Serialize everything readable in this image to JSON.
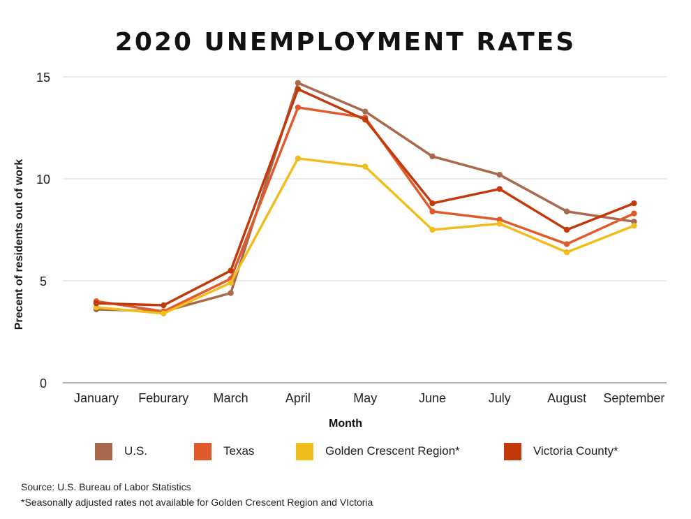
{
  "title": "2020 UNEMPLOYMENT RATES",
  "footer": {
    "source": "Source: U.S. Bureau of Labor Statistics",
    "note": "*Seasonally adjusted rates not available for Golden Crescent Region and VIctoria"
  },
  "chart_data": {
    "type": "line",
    "title": "2020 UNEMPLOYMENT RATES",
    "xlabel": "Month",
    "ylabel": "Precent of residents out of work",
    "categories": [
      "January",
      "Feburary",
      "March",
      "April",
      "May",
      "June",
      "July",
      "August",
      "September"
    ],
    "ylim": [
      0,
      15
    ],
    "yticks": [
      0,
      5,
      10,
      15
    ],
    "grid": "horizontal",
    "legend_position": "bottom",
    "series": [
      {
        "name": "U.S.",
        "color": "#a8694e",
        "values": [
          3.6,
          3.5,
          4.4,
          14.7,
          13.3,
          11.1,
          10.2,
          8.4,
          7.9
        ]
      },
      {
        "name": "Texas",
        "color": "#e05a2b",
        "values": [
          4.0,
          3.5,
          5.1,
          13.5,
          13.0,
          8.4,
          8.0,
          6.8,
          8.3
        ]
      },
      {
        "name": "Golden Crescent Region*",
        "color": "#f0bd1c",
        "values": [
          3.7,
          3.4,
          4.9,
          11.0,
          10.6,
          7.5,
          7.8,
          6.4,
          7.7
        ]
      },
      {
        "name": "Victoria County*",
        "color": "#c23a0c",
        "values": [
          3.9,
          3.8,
          5.5,
          14.4,
          12.9,
          8.8,
          9.5,
          7.5,
          8.8
        ]
      }
    ]
  }
}
